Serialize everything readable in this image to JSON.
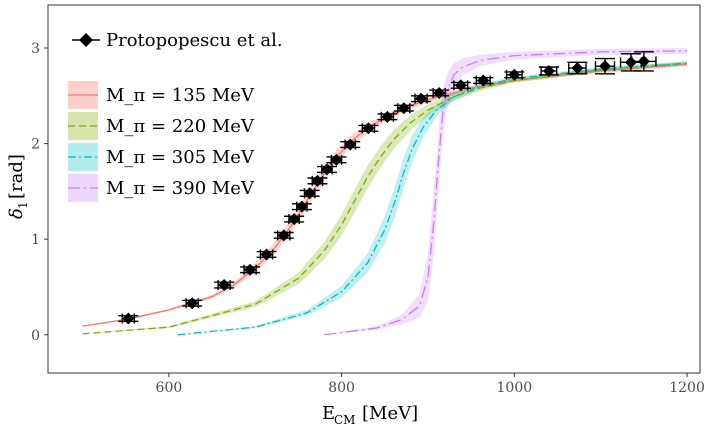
{
  "chart_data": {
    "type": "line",
    "title": "",
    "xlabel": "E_CM [MeV]",
    "ylabel": "δ_1 [rad]",
    "xlim": [
      460,
      1215
    ],
    "ylim": [
      -0.4,
      3.45
    ],
    "xticks": [
      600,
      800,
      1000,
      1200
    ],
    "yticks": [
      0,
      1,
      2,
      3
    ],
    "grid": false,
    "legend_position": "top-left",
    "data_series": {
      "name": "Protopopescu et al.",
      "color": "#000000",
      "points": [
        {
          "x": 553,
          "y": 0.17,
          "xerr": 7,
          "yerr": 0.03
        },
        {
          "x": 627,
          "y": 0.33,
          "xerr": 7,
          "yerr": 0.03
        },
        {
          "x": 664,
          "y": 0.52,
          "xerr": 7,
          "yerr": 0.03
        },
        {
          "x": 694,
          "y": 0.68,
          "xerr": 7,
          "yerr": 0.03
        },
        {
          "x": 713,
          "y": 0.84,
          "xerr": 7,
          "yerr": 0.03
        },
        {
          "x": 733,
          "y": 1.04,
          "xerr": 7,
          "yerr": 0.03
        },
        {
          "x": 745,
          "y": 1.21,
          "xerr": 6,
          "yerr": 0.03
        },
        {
          "x": 754,
          "y": 1.34,
          "xerr": 6,
          "yerr": 0.03
        },
        {
          "x": 763,
          "y": 1.48,
          "xerr": 6,
          "yerr": 0.03
        },
        {
          "x": 772,
          "y": 1.61,
          "xerr": 6,
          "yerr": 0.03
        },
        {
          "x": 783,
          "y": 1.73,
          "xerr": 6,
          "yerr": 0.03
        },
        {
          "x": 794,
          "y": 1.83,
          "xerr": 6,
          "yerr": 0.03
        },
        {
          "x": 810,
          "y": 1.99,
          "xerr": 6,
          "yerr": 0.03
        },
        {
          "x": 831,
          "y": 2.16,
          "xerr": 7,
          "yerr": 0.03
        },
        {
          "x": 853,
          "y": 2.28,
          "xerr": 7,
          "yerr": 0.03
        },
        {
          "x": 872,
          "y": 2.37,
          "xerr": 7,
          "yerr": 0.03
        },
        {
          "x": 892,
          "y": 2.47,
          "xerr": 7,
          "yerr": 0.03
        },
        {
          "x": 913,
          "y": 2.53,
          "xerr": 7,
          "yerr": 0.03
        },
        {
          "x": 938,
          "y": 2.61,
          "xerr": 8,
          "yerr": 0.03
        },
        {
          "x": 964,
          "y": 2.66,
          "xerr": 8,
          "yerr": 0.03
        },
        {
          "x": 1000,
          "y": 2.72,
          "xerr": 9,
          "yerr": 0.03
        },
        {
          "x": 1040,
          "y": 2.76,
          "xerr": 9,
          "yerr": 0.04
        },
        {
          "x": 1073,
          "y": 2.79,
          "xerr": 10,
          "yerr": 0.06
        },
        {
          "x": 1105,
          "y": 2.81,
          "xerr": 11,
          "yerr": 0.08
        },
        {
          "x": 1135,
          "y": 2.85,
          "xerr": 12,
          "yerr": 0.09
        },
        {
          "x": 1150,
          "y": 2.86,
          "xerr": 14,
          "yerr": 0.1
        }
      ]
    },
    "series": [
      {
        "name": "M_π = 135 MeV",
        "mpi": "135",
        "color": "#F8766D",
        "dash": "solid",
        "band_opacity": 0.3,
        "x": [
          500,
          550,
          600,
          650,
          675,
          700,
          720,
          740,
          755,
          765,
          775,
          790,
          810,
          830,
          850,
          875,
          900,
          950,
          1000,
          1100,
          1200
        ],
        "y": [
          0.09,
          0.16,
          0.26,
          0.4,
          0.52,
          0.7,
          0.88,
          1.12,
          1.33,
          1.48,
          1.62,
          1.82,
          2.02,
          2.16,
          2.27,
          2.38,
          2.46,
          2.58,
          2.66,
          2.76,
          2.83
        ],
        "band": [
          0.0,
          0.01,
          0.01,
          0.02,
          0.03,
          0.05,
          0.06,
          0.07,
          0.08,
          0.08,
          0.08,
          0.07,
          0.06,
          0.05,
          0.04,
          0.03,
          0.03,
          0.02,
          0.02,
          0.02,
          0.02
        ]
      },
      {
        "name": "M_π = 220 MeV",
        "mpi": "220",
        "color": "#7CAE00",
        "dash": "dashed",
        "band_opacity": 0.28,
        "x": [
          500,
          600,
          700,
          750,
          780,
          800,
          815,
          830,
          845,
          860,
          880,
          900,
          930,
          960,
          1000,
          1100,
          1200
        ],
        "y": [
          0.01,
          0.08,
          0.32,
          0.59,
          0.88,
          1.15,
          1.4,
          1.65,
          1.86,
          2.04,
          2.22,
          2.35,
          2.49,
          2.58,
          2.66,
          2.77,
          2.84
        ],
        "band": [
          0.0,
          0.01,
          0.03,
          0.06,
          0.09,
          0.11,
          0.12,
          0.12,
          0.11,
          0.1,
          0.08,
          0.06,
          0.04,
          0.03,
          0.02,
          0.02,
          0.02
        ]
      },
      {
        "name": "M_π = 305 MeV",
        "mpi": "305",
        "color": "#00BFC4",
        "dash": "dashdot",
        "band_opacity": 0.25,
        "x": [
          610,
          700,
          760,
          800,
          830,
          850,
          862,
          872,
          882,
          895,
          910,
          930,
          960,
          1000,
          1100,
          1200
        ],
        "y": [
          0.0,
          0.08,
          0.23,
          0.45,
          0.75,
          1.1,
          1.4,
          1.7,
          1.95,
          2.18,
          2.35,
          2.49,
          2.6,
          2.68,
          2.78,
          2.84
        ],
        "band": [
          0.0,
          0.01,
          0.03,
          0.06,
          0.1,
          0.14,
          0.16,
          0.16,
          0.14,
          0.1,
          0.06,
          0.04,
          0.03,
          0.02,
          0.02,
          0.02
        ]
      },
      {
        "name": "M_π = 390 MeV",
        "mpi": "390",
        "color": "#C77CFF",
        "dash": "longdashdot",
        "band_opacity": 0.25,
        "x": [
          780,
          840,
          870,
          890,
          900,
          907,
          912,
          917,
          922,
          930,
          940,
          960,
          1000,
          1100,
          1200
        ],
        "y": [
          0.0,
          0.07,
          0.16,
          0.3,
          0.6,
          1.2,
          1.8,
          2.3,
          2.55,
          2.72,
          2.8,
          2.87,
          2.92,
          2.96,
          2.97
        ],
        "band": [
          0.0,
          0.02,
          0.05,
          0.12,
          0.25,
          0.35,
          0.3,
          0.25,
          0.18,
          0.12,
          0.09,
          0.06,
          0.04,
          0.03,
          0.03
        ]
      }
    ]
  }
}
